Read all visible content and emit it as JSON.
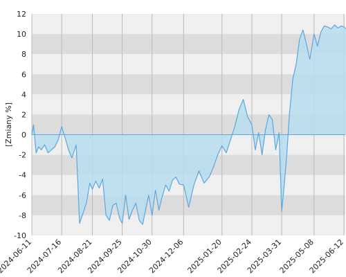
{
  "chart_data": {
    "type": "area",
    "title": "",
    "xlabel": "",
    "ylabel": "[Zmiany %]",
    "ylim": [
      -10,
      12
    ],
    "y_ticks": [
      12,
      10,
      8,
      6,
      4,
      2,
      0,
      -2,
      -4,
      -6,
      -8,
      -10
    ],
    "x_ticks": [
      "2024-06-11",
      "2024-07-16",
      "2024-08-21",
      "2024-09-25",
      "2024-10-30",
      "2024-12-06",
      "2025-01-20",
      "2025-02-24",
      "2025-03-31",
      "2025-05-08",
      "2025-06-12"
    ],
    "grid": true,
    "legend": "none",
    "colors": {
      "line": "#5aa7e0",
      "fill": "#b7dcef",
      "band_light": "#efefef",
      "band_dark": "#dcdcdc",
      "gridline": "#b9b9b9",
      "zero_line": "#5aa7e0"
    },
    "series": [
      {
        "x": [
          "2024-06-11",
          "2024-06-13",
          "2024-06-16",
          "2024-06-19",
          "2024-06-22",
          "2024-06-26",
          "2024-06-30",
          "2024-07-04",
          "2024-07-08",
          "2024-07-12",
          "2024-07-16",
          "2024-07-20",
          "2024-07-24",
          "2024-07-28",
          "2024-08-02",
          "2024-08-06",
          "2024-08-10",
          "2024-08-14",
          "2024-08-18",
          "2024-08-21",
          "2024-08-25",
          "2024-08-29",
          "2024-09-02",
          "2024-09-06",
          "2024-09-10",
          "2024-09-14",
          "2024-09-18",
          "2024-09-22",
          "2024-09-25",
          "2024-09-29",
          "2024-10-03",
          "2024-10-07",
          "2024-10-11",
          "2024-10-15",
          "2024-10-19",
          "2024-10-23",
          "2024-10-26",
          "2024-10-30",
          "2024-11-03",
          "2024-11-07",
          "2024-11-11",
          "2024-11-15",
          "2024-11-19",
          "2024-11-23",
          "2024-11-27",
          "2024-12-01",
          "2024-12-06",
          "2024-12-12",
          "2024-12-18",
          "2024-12-24",
          "2024-12-30",
          "2025-01-05",
          "2025-01-10",
          "2025-01-15",
          "2025-01-20",
          "2025-01-25",
          "2025-01-30",
          "2025-02-04",
          "2025-02-09",
          "2025-02-14",
          "2025-02-19",
          "2025-02-24",
          "2025-02-28",
          "2025-03-04",
          "2025-03-08",
          "2025-03-12",
          "2025-03-16",
          "2025-03-20",
          "2025-03-24",
          "2025-03-28",
          "2025-03-31",
          "2025-04-03",
          "2025-04-06",
          "2025-04-09",
          "2025-04-13",
          "2025-04-17",
          "2025-04-21",
          "2025-04-25",
          "2025-04-29",
          "2025-05-03",
          "2025-05-08",
          "2025-05-12",
          "2025-05-16",
          "2025-05-20",
          "2025-05-24",
          "2025-05-28",
          "2025-06-01",
          "2025-06-05",
          "2025-06-09",
          "2025-06-12",
          "2025-06-15",
          "2025-06-18"
        ],
        "y": [
          0,
          1.0,
          -1.8,
          -1.2,
          -1.5,
          -1.0,
          -1.8,
          -1.5,
          -1.2,
          -0.5,
          0.8,
          -0.3,
          -1.5,
          -2.3,
          -1.0,
          -8.8,
          -7.8,
          -6.8,
          -4.8,
          -5.4,
          -4.6,
          -5.3,
          -4.4,
          -8.0,
          -8.5,
          -7.0,
          -6.8,
          -8.3,
          -8.8,
          -6.0,
          -8.4,
          -7.5,
          -6.8,
          -8.5,
          -8.9,
          -7.2,
          -6.0,
          -8.0,
          -5.5,
          -7.5,
          -6.1,
          -5.0,
          -5.6,
          -4.5,
          -4.2,
          -4.9,
          -5.0,
          -7.2,
          -5.0,
          -3.6,
          -4.8,
          -4.2,
          -3.2,
          -2.0,
          -1.1,
          -1.8,
          -0.5,
          0.8,
          2.5,
          3.5,
          1.8,
          1.0,
          -1.5,
          0.2,
          -2.0,
          0.5,
          2.0,
          1.5,
          -1.5,
          0.2,
          -7.6,
          -5.0,
          -2.0,
          2.0,
          5.5,
          7.0,
          9.5,
          10.4,
          9.0,
          7.5,
          10.0,
          8.8,
          10.2,
          10.8,
          10.7,
          10.5,
          10.9,
          10.6,
          10.8,
          10.7,
          10.5,
          10.7
        ]
      }
    ]
  }
}
